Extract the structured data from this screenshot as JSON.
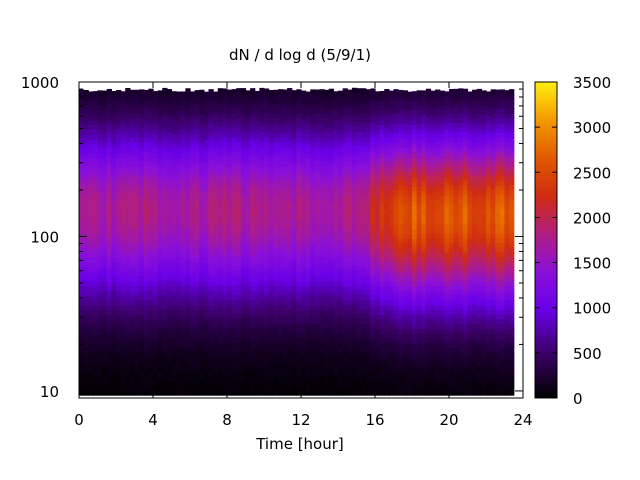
{
  "chart_data": {
    "type": "heatmap",
    "title": "dN / d log d (5/9/1)",
    "xlabel": "Time [hour]",
    "ylabel": "",
    "x_range": [
      0,
      24
    ],
    "x_ticks": [
      0,
      4,
      8,
      12,
      16,
      20,
      24
    ],
    "y_range": [
      9,
      1000
    ],
    "y_scale": "log",
    "y_ticks": [
      10,
      100,
      1000
    ],
    "data_time_range": [
      0,
      23.5
    ],
    "colorbar": {
      "colormap": "black-purple-red-orange-yellow",
      "range": [
        0,
        3500
      ],
      "ticks": [
        0,
        500,
        1000,
        1500,
        2000,
        2500,
        3000,
        3500
      ]
    },
    "grid": false,
    "profile_description": {
      "early_period_0_to_15h": {
        "peak_diameter": 150,
        "peak_value": 1750
      },
      "late_period_16_to_23h": {
        "peak_diameter": 140,
        "peak_value": 2600
      }
    }
  }
}
